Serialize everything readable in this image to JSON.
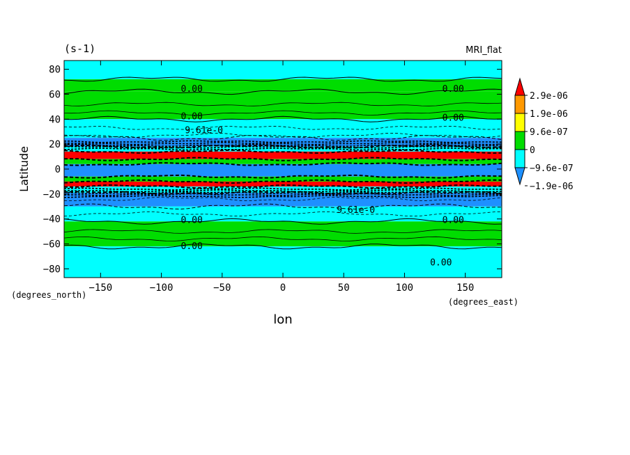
{
  "chart_data": {
    "type": "heatmap",
    "title_left": "(s-1)",
    "title_right": "MRI_flat",
    "xlabel": "lon",
    "ylabel": "Latitude",
    "xunits": "(degrees_east)",
    "yunits": "(degrees_north)",
    "xlim": [
      -180,
      180
    ],
    "ylim": [
      -87,
      87
    ],
    "xticks": [
      -150,
      -100,
      -50,
      0,
      50,
      100,
      150
    ],
    "yticks": [
      80,
      60,
      40,
      20,
      0,
      -20,
      -40,
      -60,
      -80
    ],
    "xtick_labels": [
      "−150",
      "−100",
      "−50",
      "0",
      "50",
      "100",
      "150"
    ],
    "ytick_labels": [
      "80",
      "60",
      "40",
      "20",
      "0",
      "−20",
      "−40",
      "−60",
      "−80"
    ],
    "colorbar": {
      "colors": [
        "#1e90ff",
        "#00ffff",
        "#00dd00",
        "#ffff00",
        "#ff9900",
        "#ff0000"
      ],
      "labels": [
        "2.9e-06",
        "1.9e-06",
        "9.6e-07",
        "0",
        "−9.6e-07",
        "−1.9e-06"
      ]
    },
    "bands": [
      {
        "lat": [
          72,
          87
        ],
        "color": "#00ffff"
      },
      {
        "lat": [
          62,
          72
        ],
        "color": "#00dd00"
      },
      {
        "lat": [
          40,
          62
        ],
        "color": "#00dd00"
      },
      {
        "lat": [
          25,
          40
        ],
        "color": "#00ffff"
      },
      {
        "lat": [
          18,
          25
        ],
        "color": "#1e90ff"
      },
      {
        "lat": [
          14,
          18
        ],
        "color": "#00ffff"
      },
      {
        "lat": [
          8,
          14
        ],
        "color": "#ff0000"
      },
      {
        "lat": [
          4,
          8
        ],
        "color": "#00dd00"
      },
      {
        "lat": [
          -6,
          4
        ],
        "color": "#1e90ff"
      },
      {
        "lat": [
          -10,
          -6
        ],
        "color": "#00dd00"
      },
      {
        "lat": [
          -14,
          -10
        ],
        "color": "#ff0000"
      },
      {
        "lat": [
          -19,
          -14
        ],
        "color": "#00ffff"
      },
      {
        "lat": [
          -30,
          -19
        ],
        "color": "#1e90ff"
      },
      {
        "lat": [
          -42,
          -30
        ],
        "color": "#00ffff"
      },
      {
        "lat": [
          -62,
          -42
        ],
        "color": "#00dd00"
      },
      {
        "lat": [
          -87,
          -62
        ],
        "color": "#00ffff"
      }
    ],
    "contour_labels": [
      {
        "text": "0.00",
        "lon": -75,
        "lat": 64
      },
      {
        "text": "0.00",
        "lon": 140,
        "lat": 64
      },
      {
        "text": "0.00",
        "lon": -75,
        "lat": 42
      },
      {
        "text": "0.00",
        "lon": 140,
        "lat": 41
      },
      {
        "text": "9.61e-0",
        "lon": -65,
        "lat": 31
      },
      {
        "text": "0.00",
        "lon": -75,
        "lat": -41
      },
      {
        "text": "0.00",
        "lon": 140,
        "lat": -41
      },
      {
        "text": "9.61e-0",
        "lon": 60,
        "lat": -33
      },
      {
        "text": "0.00",
        "lon": -75,
        "lat": -62
      },
      {
        "text": "0.00",
        "lon": 130,
        "lat": -75
      }
    ]
  }
}
